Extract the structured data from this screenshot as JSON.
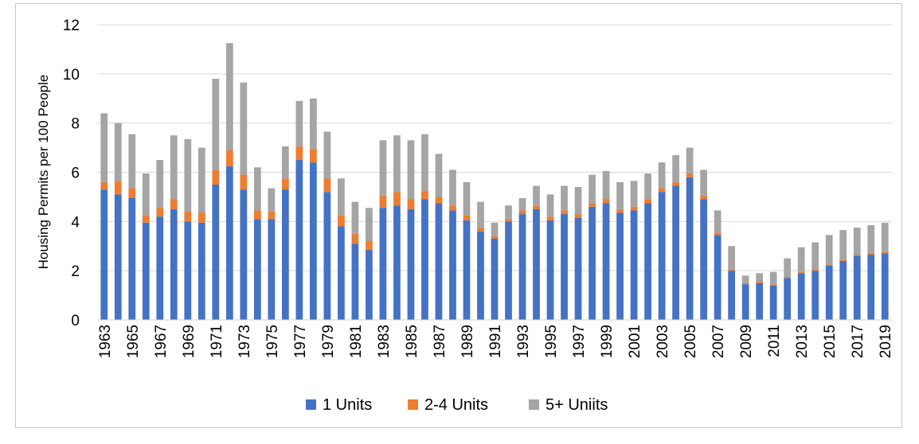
{
  "chart_data": {
    "type": "bar",
    "stacked": true,
    "title": "",
    "xlabel": "",
    "ylabel": "Housing Permits per 100 People",
    "ylim": [
      0,
      12
    ],
    "yticks": [
      0,
      2,
      4,
      6,
      8,
      10,
      12
    ],
    "grid": "horizontal",
    "legend_position": "bottom",
    "categories": [
      1963,
      1964,
      1965,
      1966,
      1967,
      1968,
      1969,
      1970,
      1971,
      1972,
      1973,
      1974,
      1975,
      1976,
      1977,
      1978,
      1979,
      1980,
      1981,
      1982,
      1983,
      1984,
      1985,
      1986,
      1987,
      1988,
      1989,
      1990,
      1991,
      1992,
      1993,
      1994,
      1995,
      1996,
      1997,
      1998,
      1999,
      2000,
      2001,
      2002,
      2003,
      2004,
      2005,
      2006,
      2007,
      2008,
      2009,
      2010,
      2011,
      2012,
      2013,
      2014,
      2015,
      2016,
      2017,
      2018,
      2019
    ],
    "series": [
      {
        "name": "1 Units",
        "color": "#4472c4",
        "values": [
          5.3,
          5.1,
          4.95,
          3.95,
          4.2,
          4.5,
          4.0,
          3.95,
          5.5,
          6.25,
          5.3,
          4.1,
          4.1,
          5.3,
          6.5,
          6.4,
          5.2,
          3.8,
          3.1,
          2.85,
          4.55,
          4.65,
          4.5,
          4.9,
          4.75,
          4.45,
          4.05,
          3.6,
          3.3,
          4.0,
          4.3,
          4.5,
          4.05,
          4.3,
          4.15,
          4.6,
          4.75,
          4.35,
          4.45,
          4.75,
          5.2,
          5.45,
          5.8,
          4.9,
          3.45,
          2.0,
          1.45,
          1.5,
          1.4,
          1.7,
          1.9,
          2.0,
          2.2,
          2.4,
          2.6,
          2.65,
          2.7
        ]
      },
      {
        "name": "2-4 Units",
        "color": "#ed7d31",
        "values": [
          0.3,
          0.55,
          0.4,
          0.3,
          0.35,
          0.4,
          0.4,
          0.4,
          0.6,
          0.65,
          0.6,
          0.35,
          0.3,
          0.45,
          0.55,
          0.55,
          0.55,
          0.45,
          0.4,
          0.35,
          0.5,
          0.55,
          0.4,
          0.35,
          0.25,
          0.2,
          0.2,
          0.15,
          0.1,
          0.1,
          0.15,
          0.15,
          0.15,
          0.15,
          0.15,
          0.15,
          0.15,
          0.15,
          0.15,
          0.15,
          0.15,
          0.15,
          0.15,
          0.15,
          0.1,
          0.05,
          0.05,
          0.05,
          0.05,
          0.05,
          0.05,
          0.05,
          0.05,
          0.05,
          0.05,
          0.05,
          0.05
        ]
      },
      {
        "name": "5+ Uniits",
        "color": "#a5a5a5",
        "values": [
          2.8,
          2.35,
          2.2,
          1.7,
          1.95,
          2.6,
          2.95,
          2.65,
          3.7,
          4.35,
          3.75,
          1.75,
          0.95,
          1.3,
          1.85,
          2.05,
          1.9,
          1.5,
          1.3,
          1.35,
          2.25,
          2.3,
          2.4,
          2.3,
          1.75,
          1.45,
          1.35,
          1.05,
          0.55,
          0.55,
          0.5,
          0.8,
          0.9,
          1.0,
          1.1,
          1.15,
          1.15,
          1.1,
          1.05,
          1.05,
          1.05,
          1.1,
          1.05,
          1.05,
          0.9,
          0.95,
          0.3,
          0.35,
          0.5,
          0.75,
          1.0,
          1.1,
          1.2,
          1.2,
          1.1,
          1.15,
          1.2
        ]
      }
    ]
  }
}
